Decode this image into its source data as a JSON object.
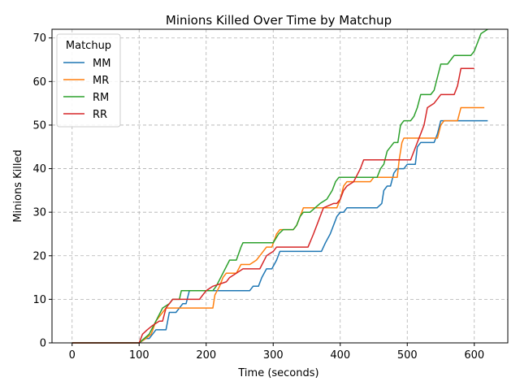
{
  "chart_data": {
    "type": "line",
    "title": "Minions Killed Over Time by Matchup",
    "xlabel": "Time (seconds)",
    "ylabel": "Minions Killed",
    "xlim": [
      -30,
      650
    ],
    "ylim": [
      0,
      72
    ],
    "xticks": [
      0,
      100,
      200,
      300,
      400,
      500,
      600
    ],
    "yticks": [
      0,
      10,
      20,
      30,
      40,
      50,
      60,
      70
    ],
    "grid": true,
    "legend": {
      "title": "Matchup",
      "placement": "top-left"
    },
    "series": [
      {
        "name": "MM",
        "color": "#1f77b4",
        "points": [
          [
            0,
            0
          ],
          [
            100,
            0
          ],
          [
            110,
            1
          ],
          [
            115,
            1
          ],
          [
            120,
            2
          ],
          [
            125,
            3
          ],
          [
            140,
            3
          ],
          [
            145,
            7
          ],
          [
            155,
            7
          ],
          [
            160,
            8
          ],
          [
            165,
            9
          ],
          [
            170,
            9
          ],
          [
            175,
            12
          ],
          [
            205,
            12
          ],
          [
            210,
            12
          ],
          [
            265,
            12
          ],
          [
            270,
            13
          ],
          [
            278,
            13
          ],
          [
            283,
            15
          ],
          [
            290,
            17
          ],
          [
            298,
            17
          ],
          [
            305,
            19
          ],
          [
            310,
            21
          ],
          [
            372,
            21
          ],
          [
            378,
            23
          ],
          [
            385,
            25
          ],
          [
            390,
            27
          ],
          [
            395,
            29
          ],
          [
            400,
            30
          ],
          [
            405,
            30
          ],
          [
            410,
            31
          ],
          [
            455,
            31
          ],
          [
            462,
            32
          ],
          [
            465,
            35
          ],
          [
            470,
            36
          ],
          [
            475,
            36
          ],
          [
            480,
            39
          ],
          [
            485,
            40
          ],
          [
            495,
            40
          ],
          [
            500,
            41
          ],
          [
            512,
            41
          ],
          [
            515,
            45
          ],
          [
            520,
            46
          ],
          [
            540,
            46
          ],
          [
            545,
            48
          ],
          [
            550,
            51
          ],
          [
            620,
            51
          ]
        ]
      },
      {
        "name": "MR",
        "color": "#ff7f0e",
        "points": [
          [
            0,
            0
          ],
          [
            100,
            0
          ],
          [
            110,
            1
          ],
          [
            118,
            2
          ],
          [
            125,
            5
          ],
          [
            135,
            7
          ],
          [
            140,
            8
          ],
          [
            150,
            8
          ],
          [
            160,
            8
          ],
          [
            210,
            8
          ],
          [
            213,
            11
          ],
          [
            220,
            13
          ],
          [
            225,
            15
          ],
          [
            230,
            16
          ],
          [
            245,
            16
          ],
          [
            252,
            18
          ],
          [
            265,
            18
          ],
          [
            275,
            19
          ],
          [
            280,
            20
          ],
          [
            285,
            21
          ],
          [
            290,
            22
          ],
          [
            298,
            22
          ],
          [
            305,
            25
          ],
          [
            310,
            26
          ],
          [
            330,
            26
          ],
          [
            335,
            27
          ],
          [
            340,
            29
          ],
          [
            345,
            31
          ],
          [
            375,
            31
          ],
          [
            380,
            31
          ],
          [
            395,
            31
          ],
          [
            400,
            33
          ],
          [
            405,
            36
          ],
          [
            410,
            37
          ],
          [
            445,
            37
          ],
          [
            450,
            38
          ],
          [
            485,
            38
          ],
          [
            488,
            42
          ],
          [
            492,
            46
          ],
          [
            495,
            47
          ],
          [
            545,
            47
          ],
          [
            550,
            50
          ],
          [
            555,
            51
          ],
          [
            575,
            51
          ],
          [
            580,
            54
          ],
          [
            615,
            54
          ]
        ]
      },
      {
        "name": "RM",
        "color": "#2ca02c",
        "points": [
          [
            0,
            0
          ],
          [
            100,
            0
          ],
          [
            115,
            2
          ],
          [
            125,
            5
          ],
          [
            135,
            8
          ],
          [
            145,
            9
          ],
          [
            150,
            10
          ],
          [
            160,
            10
          ],
          [
            163,
            12
          ],
          [
            200,
            12
          ],
          [
            210,
            12
          ],
          [
            215,
            13
          ],
          [
            225,
            16
          ],
          [
            235,
            19
          ],
          [
            245,
            19
          ],
          [
            252,
            22
          ],
          [
            255,
            23
          ],
          [
            300,
            23
          ],
          [
            308,
            25
          ],
          [
            315,
            26
          ],
          [
            330,
            26
          ],
          [
            335,
            27
          ],
          [
            340,
            29
          ],
          [
            345,
            30
          ],
          [
            355,
            30
          ],
          [
            370,
            32
          ],
          [
            380,
            33
          ],
          [
            388,
            35
          ],
          [
            393,
            37
          ],
          [
            398,
            38
          ],
          [
            455,
            38
          ],
          [
            460,
            40
          ],
          [
            465,
            41
          ],
          [
            470,
            44
          ],
          [
            475,
            45
          ],
          [
            480,
            46
          ],
          [
            486,
            46
          ],
          [
            490,
            50
          ],
          [
            495,
            51
          ],
          [
            505,
            51
          ],
          [
            510,
            52
          ],
          [
            515,
            54
          ],
          [
            520,
            57
          ],
          [
            535,
            57
          ],
          [
            540,
            58
          ],
          [
            545,
            61
          ],
          [
            550,
            64
          ],
          [
            560,
            64
          ],
          [
            565,
            65
          ],
          [
            570,
            66
          ],
          [
            595,
            66
          ],
          [
            600,
            67
          ],
          [
            605,
            69
          ],
          [
            610,
            71
          ],
          [
            620,
            72
          ]
        ]
      },
      {
        "name": "RR",
        "color": "#d62728",
        "points": [
          [
            0,
            0
          ],
          [
            100,
            0
          ],
          [
            105,
            2
          ],
          [
            112,
            3
          ],
          [
            120,
            4
          ],
          [
            130,
            5
          ],
          [
            135,
            5
          ],
          [
            140,
            8
          ],
          [
            145,
            9
          ],
          [
            150,
            10
          ],
          [
            190,
            10
          ],
          [
            195,
            11
          ],
          [
            200,
            12
          ],
          [
            210,
            13
          ],
          [
            230,
            14
          ],
          [
            235,
            15
          ],
          [
            245,
            16
          ],
          [
            255,
            17
          ],
          [
            280,
            17
          ],
          [
            290,
            20
          ],
          [
            300,
            21
          ],
          [
            305,
            22
          ],
          [
            352,
            22
          ],
          [
            360,
            25
          ],
          [
            365,
            27
          ],
          [
            370,
            29
          ],
          [
            375,
            31
          ],
          [
            390,
            32
          ],
          [
            395,
            32
          ],
          [
            400,
            33
          ],
          [
            405,
            35
          ],
          [
            410,
            36
          ],
          [
            420,
            37
          ],
          [
            430,
            40
          ],
          [
            435,
            42
          ],
          [
            455,
            42
          ],
          [
            485,
            42
          ],
          [
            505,
            42
          ],
          [
            510,
            44
          ],
          [
            515,
            46
          ],
          [
            520,
            48
          ],
          [
            525,
            50
          ],
          [
            530,
            54
          ],
          [
            540,
            55
          ],
          [
            545,
            56
          ],
          [
            550,
            57
          ],
          [
            570,
            57
          ],
          [
            575,
            59
          ],
          [
            580,
            63
          ],
          [
            600,
            63
          ]
        ]
      }
    ]
  }
}
